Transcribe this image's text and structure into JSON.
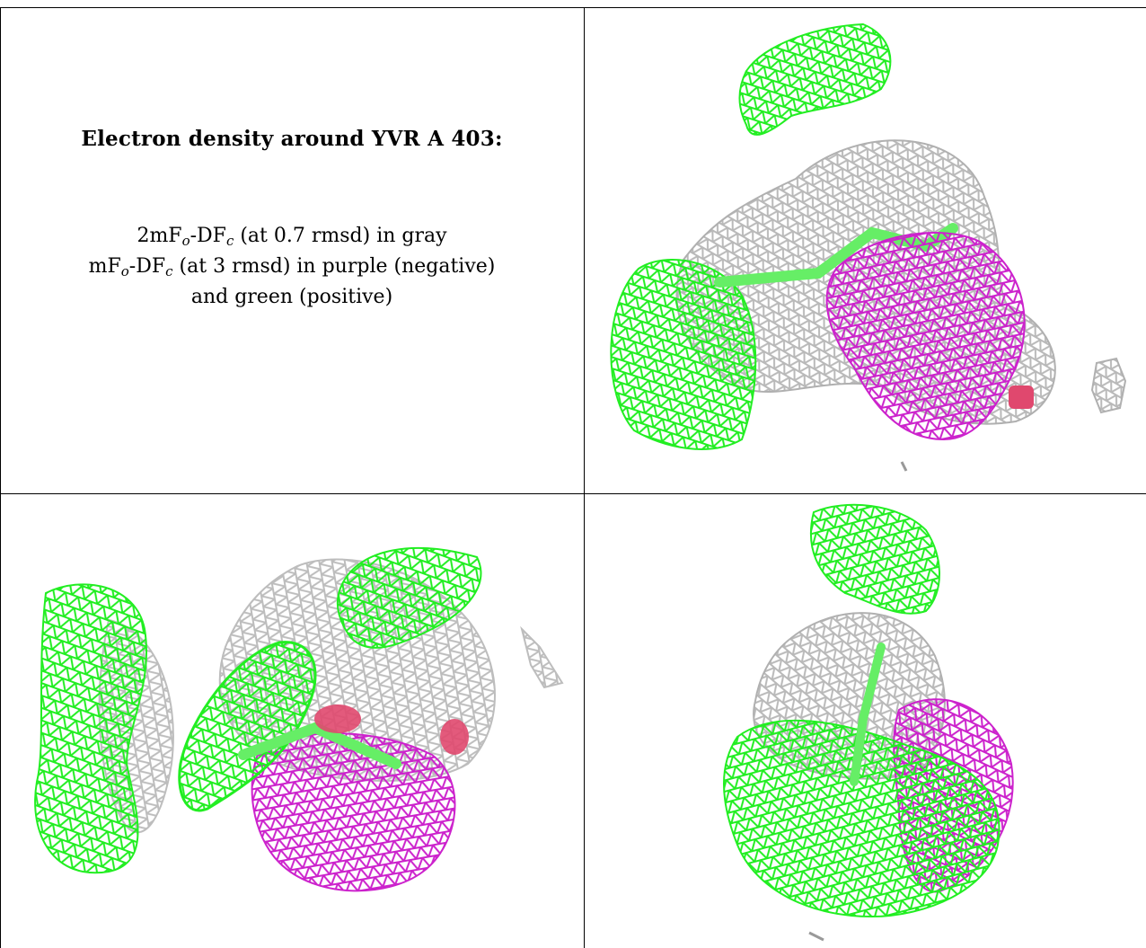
{
  "legend": {
    "title": "Electron density around YVR A 403:",
    "line1": {
      "prefix": "2mF",
      "sub1": "o",
      "mid": "-DF",
      "sub2": "c",
      "suffix": " (at 0.7 rmsd) in gray"
    },
    "line2": {
      "prefix": "mF",
      "sub1": "o",
      "mid": "-DF",
      "sub2": "c",
      "suffix": " (at 3 rmsd) in purple (negative)"
    },
    "line3": "and green (positive)"
  },
  "panels": [
    {
      "view": "view-1"
    },
    {
      "view": "view-2"
    },
    {
      "view": "view-3"
    }
  ],
  "colors": {
    "positive": "#22ee22",
    "negative": "#cc22cc",
    "density": "#b9b9b9",
    "ligand": "#66ee66",
    "oxygen": "#e0486e"
  }
}
